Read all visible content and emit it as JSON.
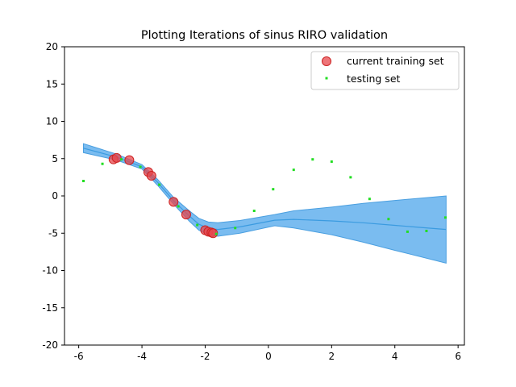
{
  "chart_data": {
    "type": "scatter",
    "title": "Plotting Iterations of sinus RIRO validation",
    "xlabel": "",
    "ylabel": "",
    "xlim": [
      -6.45,
      6.2
    ],
    "ylim": [
      -20,
      20
    ],
    "xticks": [
      -6,
      -4,
      -2,
      0,
      2,
      4,
      6
    ],
    "yticks": [
      20,
      15,
      10,
      5,
      0,
      -5,
      -10,
      -15,
      -20
    ],
    "grid": false,
    "legend_position": "top-right",
    "colors": {
      "band_fill": "#7abcf0",
      "band_edge": "#4a9fe0",
      "mean_line": "#3b9be0",
      "training": "#e8474c",
      "testing": "#22dd22"
    },
    "series": [
      {
        "name": "current training set",
        "marker": "circle",
        "x": [
          -4.9,
          -4.8,
          -4.4,
          -3.8,
          -3.7,
          -3.0,
          -2.6,
          -2.0,
          -1.9,
          -1.8,
          -1.75
        ],
        "y": [
          4.9,
          5.1,
          4.8,
          3.2,
          2.7,
          -0.8,
          -2.5,
          -4.6,
          -4.8,
          -4.9,
          -5.0
        ]
      },
      {
        "name": "testing set",
        "marker": "point",
        "x": [
          -5.85,
          -5.25,
          -4.65,
          -4.05,
          -3.45,
          -2.85,
          -2.25,
          -1.65,
          -1.05,
          -0.45,
          0.15,
          0.8,
          1.4,
          2.0,
          2.6,
          3.2,
          3.8,
          4.4,
          5.0,
          5.6
        ],
        "y": [
          2.0,
          4.3,
          4.9,
          3.9,
          1.5,
          -1.4,
          -3.9,
          -5.1,
          -4.3,
          -2.0,
          0.9,
          3.5,
          4.9,
          4.6,
          2.5,
          -0.4,
          -3.1,
          -4.8,
          -4.7,
          -2.9
        ]
      }
    ],
    "prediction_band": {
      "x": [
        -5.85,
        -4.8,
        -4.0,
        -3.5,
        -3.0,
        -2.5,
        -2.2,
        -1.9,
        -1.6,
        -0.9,
        0.2,
        0.8,
        2.0,
        3.0,
        4.0,
        5.62
      ],
      "upper": [
        7.0,
        5.6,
        4.2,
        2.2,
        -0.2,
        -2.0,
        -3.0,
        -3.5,
        -3.6,
        -3.3,
        -2.5,
        -2.0,
        -1.5,
        -1.0,
        -0.6,
        0.0
      ],
      "lower": [
        5.8,
        4.8,
        3.6,
        1.4,
        -1.1,
        -3.4,
        -4.6,
        -5.2,
        -5.4,
        -5.0,
        -4.0,
        -4.3,
        -5.2,
        -6.2,
        -7.3,
        -9.0
      ],
      "mean": [
        6.4,
        5.2,
        3.9,
        1.8,
        -0.65,
        -2.7,
        -3.8,
        -4.35,
        -4.5,
        -4.15,
        -3.25,
        -3.15,
        -3.35,
        -3.6,
        -3.95,
        -4.5
      ]
    }
  }
}
